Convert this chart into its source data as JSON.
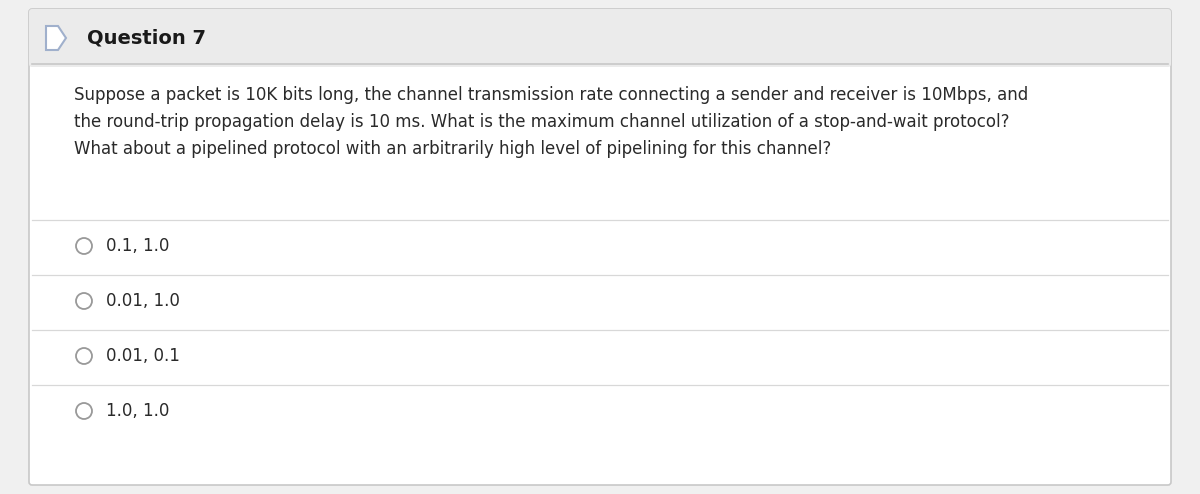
{
  "title": "Question 7",
  "question_text": "Suppose a packet is 10K bits long, the channel transmission rate connecting a sender and receiver is 10Mbps, and\nthe round-trip propagation delay is 10 ms. What is the maximum channel utilization of a stop-and-wait protocol?\nWhat about a pipelined protocol with an arbitrarily high level of pipelining for this channel?",
  "options": [
    "0.1, 1.0",
    "0.01, 1.0",
    "0.01, 0.1",
    "1.0, 1.0"
  ],
  "bg_color": "#f0f0f0",
  "card_color": "#ffffff",
  "header_bg": "#ebebeb",
  "border_color": "#c8c8c8",
  "title_color": "#1a1a1a",
  "text_color": "#2a2a2a",
  "option_color": "#2a2a2a",
  "divider_color": "#d8d8d8",
  "circle_edge_color": "#999999",
  "title_fontsize": 14,
  "question_fontsize": 12,
  "option_fontsize": 12,
  "icon_edge_color": "#a0b0cc"
}
